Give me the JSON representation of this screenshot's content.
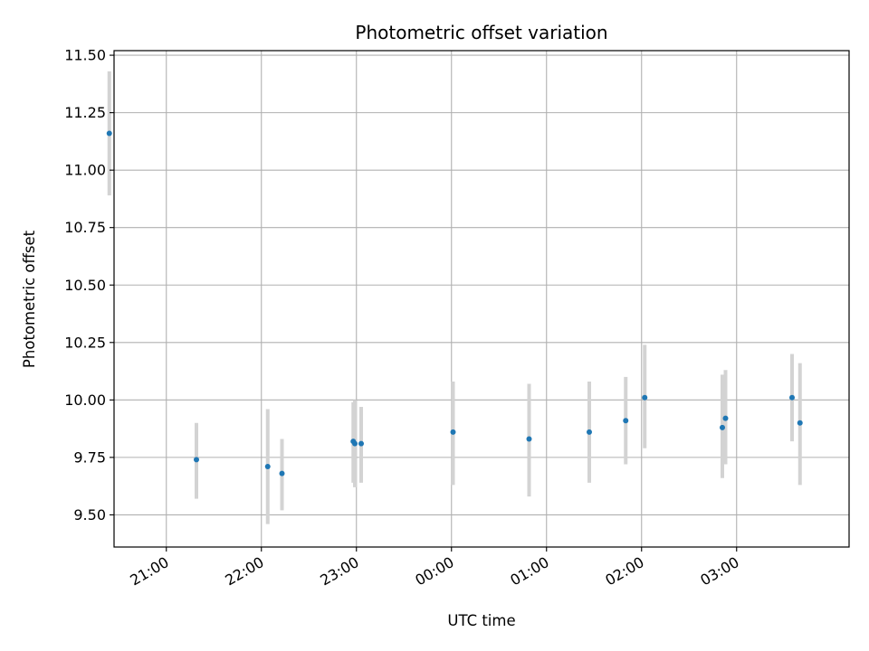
{
  "chart_data": {
    "type": "scatter",
    "title": "Photometric offset variation",
    "xlabel": "UTC time",
    "ylabel": "Photometric offset",
    "grid": true,
    "x_axis": {
      "type": "time",
      "range": [
        "20:27",
        "28:11"
      ],
      "ticks": [
        {
          "value": "21:00",
          "label": "21:00"
        },
        {
          "value": "22:00",
          "label": "22:00"
        },
        {
          "value": "23:00",
          "label": "23:00"
        },
        {
          "value": "24:00",
          "label": "00:00"
        },
        {
          "value": "25:00",
          "label": "01:00"
        },
        {
          "value": "26:00",
          "label": "02:00"
        },
        {
          "value": "27:00",
          "label": "03:00"
        }
      ]
    },
    "y_axis": {
      "range": [
        9.36,
        11.52
      ],
      "ticks": [
        {
          "value": 9.5,
          "label": "9.50"
        },
        {
          "value": 9.75,
          "label": "9.75"
        },
        {
          "value": 10.0,
          "label": "10.00"
        },
        {
          "value": 10.25,
          "label": "10.25"
        },
        {
          "value": 10.5,
          "label": "10.50"
        },
        {
          "value": 10.75,
          "label": "10.75"
        },
        {
          "value": 11.0,
          "label": "11.00"
        },
        {
          "value": 11.25,
          "label": "11.25"
        },
        {
          "value": 11.5,
          "label": "11.50"
        }
      ]
    },
    "colors": {
      "point": "#1f77b4",
      "errorbar": "#d3d3d3",
      "grid": "#b0b0b0"
    },
    "points": [
      {
        "x": "20:24",
        "y": 11.16,
        "ylow": 10.89,
        "yhigh": 11.43
      },
      {
        "x": "21:19",
        "y": 9.74,
        "ylow": 9.57,
        "yhigh": 9.9
      },
      {
        "x": "22:04",
        "y": 9.71,
        "ylow": 9.46,
        "yhigh": 9.96
      },
      {
        "x": "22:13",
        "y": 9.68,
        "ylow": 9.52,
        "yhigh": 9.83
      },
      {
        "x": "22:58",
        "y": 9.82,
        "ylow": 9.64,
        "yhigh": 9.99
      },
      {
        "x": "22:59",
        "y": 9.81,
        "ylow": 9.62,
        "yhigh": 10.0
      },
      {
        "x": "23:03",
        "y": 9.81,
        "ylow": 9.64,
        "yhigh": 9.97
      },
      {
        "x": "24:01",
        "y": 9.86,
        "ylow": 9.63,
        "yhigh": 10.08
      },
      {
        "x": "24:49",
        "y": 9.83,
        "ylow": 9.58,
        "yhigh": 10.07
      },
      {
        "x": "25:27",
        "y": 9.86,
        "ylow": 9.64,
        "yhigh": 10.08
      },
      {
        "x": "25:50",
        "y": 9.91,
        "ylow": 9.72,
        "yhigh": 10.1
      },
      {
        "x": "26:02",
        "y": 10.01,
        "ylow": 9.79,
        "yhigh": 10.24
      },
      {
        "x": "26:51",
        "y": 9.88,
        "ylow": 9.66,
        "yhigh": 10.11
      },
      {
        "x": "26:53",
        "y": 9.92,
        "ylow": 9.72,
        "yhigh": 10.13
      },
      {
        "x": "27:35",
        "y": 10.01,
        "ylow": 9.82,
        "yhigh": 10.2
      },
      {
        "x": "27:40",
        "y": 9.9,
        "ylow": 9.63,
        "yhigh": 10.16
      }
    ]
  }
}
